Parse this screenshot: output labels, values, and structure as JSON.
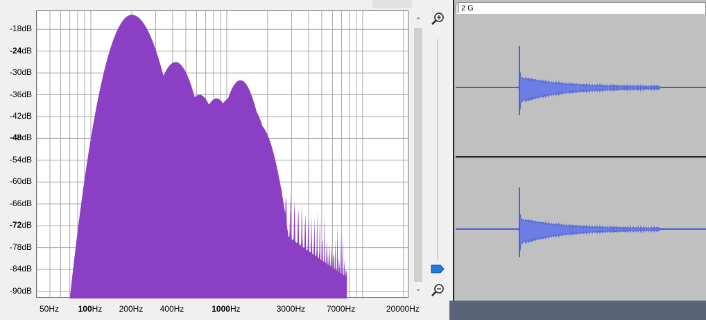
{
  "spectrum": {
    "db_labels": [
      {
        "text": "-18",
        "bold": false
      },
      {
        "text": "-24",
        "bold": true
      },
      {
        "text": "-30",
        "bold": false
      },
      {
        "text": "-36",
        "bold": false
      },
      {
        "text": "-42",
        "bold": false
      },
      {
        "text": "-48",
        "bold": true
      },
      {
        "text": "-54",
        "bold": false
      },
      {
        "text": "-60",
        "bold": false
      },
      {
        "text": "-66",
        "bold": false
      },
      {
        "text": "-72",
        "bold": true
      },
      {
        "text": "-78",
        "bold": false
      },
      {
        "text": "-84",
        "bold": false
      },
      {
        "text": "-90",
        "bold": false
      }
    ],
    "db_unit": "dB",
    "freq_labels": [
      {
        "text": "50",
        "bold": false
      },
      {
        "text": "100",
        "bold": true
      },
      {
        "text": "200",
        "bold": false
      },
      {
        "text": "400",
        "bold": false
      },
      {
        "text": "1000",
        "bold": true
      },
      {
        "text": "3000",
        "bold": false
      },
      {
        "text": "7000",
        "bold": false
      },
      {
        "text": "20000",
        "bold": false
      }
    ],
    "freq_unit": "Hz",
    "fill_color": "#8a3fc4",
    "grid_color": "#a8a8a8",
    "freq_range_hz": [
      40,
      22000
    ],
    "db_range": [
      -92,
      -13
    ],
    "peaks": [
      {
        "hz": 200,
        "db": -14
      },
      {
        "hz": 420,
        "db": -27
      },
      {
        "hz": 630,
        "db": -36
      },
      {
        "hz": 840,
        "db": -37
      },
      {
        "hz": 1050,
        "db": -37
      },
      {
        "hz": 1260,
        "db": -32
      },
      {
        "hz": 1470,
        "db": -39
      },
      {
        "hz": 1700,
        "db": -44
      }
    ],
    "cutoff_hz": 7700
  },
  "track": {
    "name": "2 G",
    "wave_color": "#4a5ed4",
    "background_color": "#c0c0c0"
  },
  "zoom": {
    "in_icon": "zoom-in-icon",
    "out_icon": "zoom-out-icon"
  }
}
